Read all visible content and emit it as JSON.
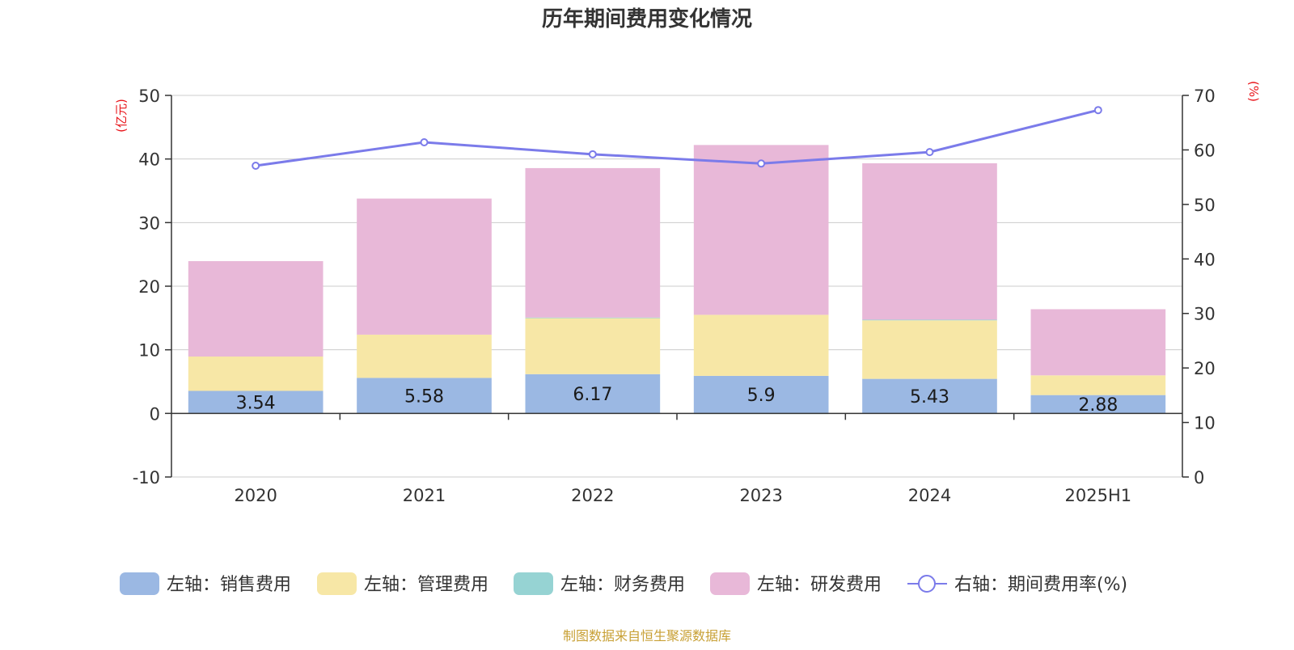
{
  "title": "历年期间费用变化情况",
  "source_note": "制图数据来自恒生聚源数据库",
  "chart_data": {
    "type": "bar",
    "stacked": true,
    "categories": [
      "2020",
      "2021",
      "2022",
      "2023",
      "2024",
      "2025H1"
    ],
    "y_left": {
      "unit": "(亿元)",
      "min": -10,
      "max": 50,
      "ticks": [
        -10,
        0,
        10,
        20,
        30,
        40,
        50
      ]
    },
    "y_right": {
      "unit": "(%)",
      "min": 0,
      "max": 70,
      "ticks": [
        0,
        10,
        20,
        30,
        40,
        50,
        60,
        70
      ]
    },
    "grid": true,
    "legend_position": "bottom",
    "series": [
      {
        "name": "左轴：销售费用",
        "type": "bar",
        "axis": "left",
        "color": "#9bb8e3",
        "values": [
          3.54,
          5.58,
          6.17,
          5.9,
          5.43,
          2.88
        ],
        "show_labels": true
      },
      {
        "name": "左轴：管理费用",
        "type": "bar",
        "axis": "left",
        "color": "#f7e7a6",
        "values": [
          5.4,
          6.8,
          8.8,
          9.6,
          9.2,
          3.1
        ],
        "show_labels": false
      },
      {
        "name": "左轴：财务费用",
        "type": "bar",
        "axis": "left",
        "color": "#96d3d3",
        "values": [
          0.0,
          0.0,
          0.1,
          -0.1,
          0.1,
          0.0
        ],
        "show_labels": false
      },
      {
        "name": "左轴：研发费用",
        "type": "bar",
        "axis": "left",
        "color": "#e8b8d8",
        "values": [
          15.0,
          21.4,
          23.5,
          26.7,
          24.6,
          10.4
        ],
        "show_labels": false
      },
      {
        "name": "右轴：期间费用率(%)",
        "type": "line",
        "axis": "right",
        "color": "#7b7bea",
        "values": [
          57.1,
          61.4,
          59.2,
          57.5,
          59.6,
          67.3
        ]
      }
    ]
  }
}
